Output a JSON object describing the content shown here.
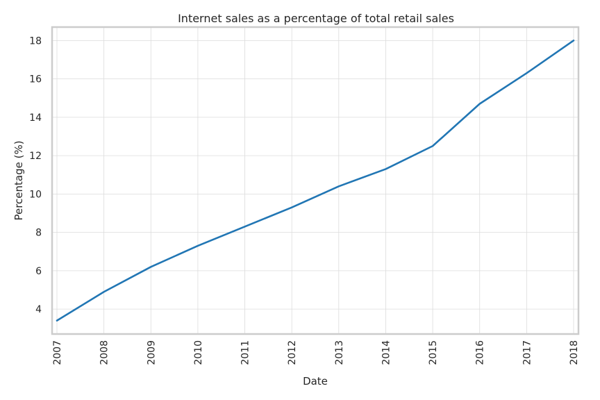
{
  "chart_data": {
    "type": "line",
    "title": "Internet sales as a percentage of total retail sales",
    "xlabel": "Date",
    "ylabel": "Percentage (%)",
    "x": [
      "2007",
      "2008",
      "2009",
      "2010",
      "2011",
      "2012",
      "2013",
      "2014",
      "2015",
      "2016",
      "2017",
      "2018"
    ],
    "series": [
      {
        "values": [
          3.4,
          4.9,
          6.2,
          7.3,
          8.3,
          9.3,
          10.4,
          11.3,
          12.5,
          14.7,
          16.3,
          18.0
        ]
      }
    ],
    "y_ticks": [
      "4",
      "6",
      "8",
      "10",
      "12",
      "14",
      "16",
      "18"
    ],
    "ylim": [
      2.7,
      18.7
    ],
    "grid": true,
    "line_color": "#2176b4"
  }
}
